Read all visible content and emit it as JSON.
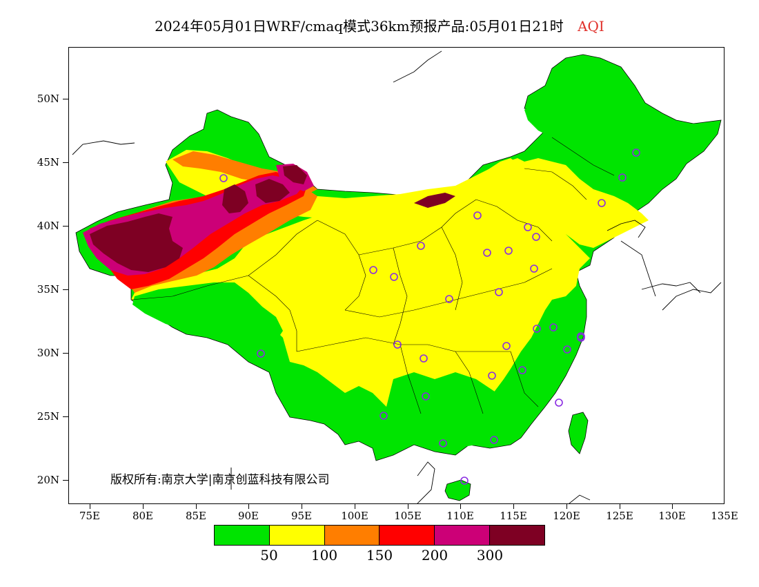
{
  "title": {
    "main": "2024年05月01日WRF/cmaq模式36km预报产品:05月01日21时",
    "variable": "AQI",
    "variable_color": "#e0302a"
  },
  "axes": {
    "x_ticks": [
      "75E",
      "80E",
      "85E",
      "90E",
      "95E",
      "100E",
      "105E",
      "110E",
      "115E",
      "120E",
      "125E",
      "130E",
      "135E"
    ],
    "y_ticks": [
      "50N",
      "45N",
      "40N",
      "35N",
      "30N",
      "25N",
      "20N"
    ]
  },
  "copyright": "版权所有:南京大学|南京创蓝科技有限公司",
  "legend": {
    "colors": [
      "#00e400",
      "#ffff00",
      "#ff7e00",
      "#ff0000",
      "#cc0077",
      "#7e0023"
    ],
    "labels": [
      "50",
      "100",
      "150",
      "200",
      "300"
    ]
  },
  "colors": {
    "good": "#00e400",
    "moderate": "#ffff00",
    "usg": "#ff7e00",
    "unhealthy": "#ff0000",
    "very_unhealthy": "#cc0077",
    "hazardous": "#7e0023",
    "station_marker": "#8a2be2"
  }
}
